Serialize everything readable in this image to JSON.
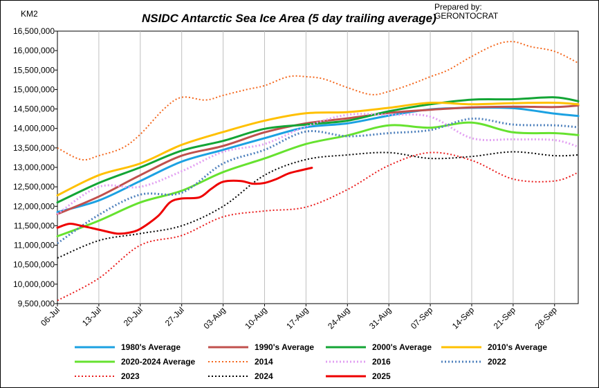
{
  "header": {
    "title": "NSIDC  Antarctic Sea Ice Area (5 day trailing average)",
    "prepared_by": "Prepared by:",
    "author": "GERONTOCRAT",
    "unit": "KM2"
  },
  "chart_data": {
    "type": "line",
    "title": "NSIDC  Antarctic Sea Ice Area (5 day trailing average)",
    "ylabel": "KM2",
    "xlabel": "",
    "x_start": "06-Jul",
    "x_end": "02-Oct",
    "ylim": [
      9500000,
      16500000
    ],
    "grid": "vertical lines at each x tick",
    "legend_position": "bottom",
    "x_ticks": [
      "06-Jul",
      "13-Jul",
      "20-Jul",
      "27-Jul",
      "03-Aug",
      "10-Aug",
      "17-Aug",
      "24-Aug",
      "31-Aug",
      "07-Sep",
      "14-Sep",
      "21-Sep",
      "28-Sep"
    ],
    "y_ticks": [
      "9,500,000",
      "10,000,000",
      "10,500,000",
      "11,000,000",
      "11,500,000",
      "12,000,000",
      "12,500,000",
      "13,000,000",
      "13,500,000",
      "14,000,000",
      "14,500,000",
      "15,000,000",
      "15,500,000",
      "16,000,000",
      "16,500,000"
    ],
    "series": [
      {
        "name": "1980's Average",
        "color": "#1ba1e2",
        "dash": "solid",
        "width": 3,
        "x": [
          "06-Jul",
          "13-Jul",
          "20-Jul",
          "27-Jul",
          "03-Aug",
          "10-Aug",
          "17-Aug",
          "24-Aug",
          "31-Aug",
          "07-Sep",
          "14-Sep",
          "21-Sep",
          "28-Sep",
          "02-Oct"
        ],
        "y": [
          11850000,
          12150000,
          12650000,
          13150000,
          13450000,
          13750000,
          14030000,
          14130000,
          14330000,
          14490000,
          14530000,
          14520000,
          14380000,
          14320000
        ]
      },
      {
        "name": "1990's Average",
        "color": "#c0504d",
        "dash": "solid",
        "width": 3,
        "x": [
          "06-Jul",
          "13-Jul",
          "20-Jul",
          "27-Jul",
          "03-Aug",
          "10-Aug",
          "17-Aug",
          "24-Aug",
          "31-Aug",
          "07-Sep",
          "14-Sep",
          "21-Sep",
          "28-Sep",
          "02-Oct"
        ],
        "y": [
          11800000,
          12250000,
          12800000,
          13300000,
          13550000,
          13900000,
          14130000,
          14260000,
          14400000,
          14480000,
          14540000,
          14560000,
          14550000,
          14590000
        ]
      },
      {
        "name": "2000's Average",
        "color": "#13a535",
        "dash": "solid",
        "width": 3,
        "x": [
          "06-Jul",
          "13-Jul",
          "20-Jul",
          "27-Jul",
          "03-Aug",
          "10-Aug",
          "17-Aug",
          "24-Aug",
          "31-Aug",
          "07-Sep",
          "14-Sep",
          "21-Sep",
          "28-Sep",
          "02-Oct"
        ],
        "y": [
          12100000,
          12600000,
          13000000,
          13430000,
          13680000,
          13990000,
          14100000,
          14200000,
          14440000,
          14620000,
          14740000,
          14750000,
          14800000,
          14700000
        ]
      },
      {
        "name": "2010's Average",
        "color": "#ffc000",
        "dash": "solid",
        "width": 3,
        "x": [
          "06-Jul",
          "13-Jul",
          "20-Jul",
          "27-Jul",
          "03-Aug",
          "10-Aug",
          "17-Aug",
          "24-Aug",
          "31-Aug",
          "07-Sep",
          "14-Sep",
          "21-Sep",
          "28-Sep",
          "02-Oct"
        ],
        "y": [
          12280000,
          12800000,
          13100000,
          13580000,
          13910000,
          14200000,
          14390000,
          14420000,
          14530000,
          14660000,
          14620000,
          14650000,
          14660000,
          14620000
        ]
      },
      {
        "name": "2020-2024 Average",
        "color": "#66e22f",
        "dash": "solid",
        "width": 3,
        "x": [
          "06-Jul",
          "13-Jul",
          "20-Jul",
          "27-Jul",
          "03-Aug",
          "10-Aug",
          "17-Aug",
          "24-Aug",
          "31-Aug",
          "07-Sep",
          "14-Sep",
          "21-Sep",
          "28-Sep",
          "02-Oct"
        ],
        "y": [
          11230000,
          11630000,
          12100000,
          12400000,
          12880000,
          13230000,
          13600000,
          13820000,
          14080000,
          14020000,
          14150000,
          13900000,
          13880000,
          13830000
        ]
      },
      {
        "name": "2014",
        "color": "#f4661b",
        "dash": "2 3",
        "width": 2,
        "x": [
          "06-Jul",
          "10-Jul",
          "13-Jul",
          "17-Jul",
          "20-Jul",
          "24-Jul",
          "27-Jul",
          "31-Jul",
          "03-Aug",
          "07-Aug",
          "10-Aug",
          "14-Aug",
          "17-Aug",
          "20-Aug",
          "24-Aug",
          "28-Aug",
          "31-Aug",
          "04-Sep",
          "07-Sep",
          "10-Sep",
          "14-Sep",
          "18-Sep",
          "21-Sep",
          "24-Sep",
          "28-Sep",
          "02-Oct"
        ],
        "y": [
          13500000,
          13200000,
          13300000,
          13500000,
          13850000,
          14500000,
          14800000,
          14730000,
          14850000,
          15000000,
          15100000,
          15330000,
          15330000,
          15270000,
          15050000,
          14870000,
          14950000,
          15150000,
          15330000,
          15500000,
          15850000,
          16150000,
          16230000,
          16100000,
          15980000,
          15680000
        ]
      },
      {
        "name": "2016",
        "color": "#e29ff2",
        "dash": "2 3",
        "width": 3,
        "x": [
          "06-Jul",
          "13-Jul",
          "20-Jul",
          "27-Jul",
          "03-Aug",
          "10-Aug",
          "17-Aug",
          "24-Aug",
          "31-Aug",
          "07-Sep",
          "14-Sep",
          "21-Sep",
          "28-Sep",
          "02-Oct"
        ],
        "y": [
          11800000,
          12500000,
          12500000,
          12900000,
          13400000,
          13600000,
          14050000,
          14350000,
          14350000,
          14300000,
          13750000,
          13720000,
          13700000,
          13530000
        ]
      },
      {
        "name": "2022",
        "color": "#4f81bd",
        "dash": "2 3",
        "width": 3,
        "x": [
          "06-Jul",
          "13-Jul",
          "20-Jul",
          "27-Jul",
          "03-Aug",
          "10-Aug",
          "17-Aug",
          "24-Aug",
          "31-Aug",
          "07-Sep",
          "14-Sep",
          "21-Sep",
          "28-Sep",
          "02-Oct"
        ],
        "y": [
          11050000,
          11780000,
          12300000,
          12350000,
          13100000,
          13450000,
          13920000,
          13800000,
          13880000,
          13960000,
          14250000,
          14100000,
          14080000,
          14030000
        ]
      },
      {
        "name": "2023",
        "color": "#ea1b1b",
        "dash": "2 3",
        "width": 2,
        "x": [
          "06-Jul",
          "13-Jul",
          "20-Jul",
          "27-Jul",
          "03-Aug",
          "10-Aug",
          "17-Aug",
          "24-Aug",
          "31-Aug",
          "07-Sep",
          "14-Sep",
          "21-Sep",
          "28-Sep",
          "02-Oct"
        ],
        "y": [
          9580000,
          10150000,
          11000000,
          11250000,
          11730000,
          11880000,
          11980000,
          12430000,
          13050000,
          13380000,
          13180000,
          12700000,
          12650000,
          12870000
        ]
      },
      {
        "name": "2024",
        "color": "#000000",
        "dash": "2 3",
        "width": 2,
        "x": [
          "06-Jul",
          "13-Jul",
          "20-Jul",
          "27-Jul",
          "03-Aug",
          "10-Aug",
          "17-Aug",
          "24-Aug",
          "31-Aug",
          "07-Sep",
          "14-Sep",
          "21-Sep",
          "28-Sep",
          "02-Oct"
        ],
        "y": [
          10670000,
          11120000,
          11300000,
          11500000,
          12000000,
          12800000,
          13200000,
          13320000,
          13380000,
          13230000,
          13280000,
          13400000,
          13300000,
          13320000
        ]
      },
      {
        "name": "2025",
        "color": "#ee0000",
        "dash": "solid",
        "width": 3,
        "x": [
          "06-Jul",
          "08-Jul",
          "10-Jul",
          "13-Jul",
          "16-Jul",
          "18-Jul",
          "20-Jul",
          "23-Jul",
          "25-Jul",
          "27-Jul",
          "30-Jul",
          "01-Aug",
          "03-Aug",
          "06-Aug",
          "08-Aug",
          "10-Aug",
          "12-Aug",
          "14-Aug",
          "16-Aug",
          "18-Aug"
        ],
        "y": [
          11450000,
          11550000,
          11500000,
          11400000,
          11300000,
          11320000,
          11420000,
          11750000,
          12100000,
          12200000,
          12230000,
          12450000,
          12630000,
          12650000,
          12580000,
          12600000,
          12700000,
          12840000,
          12920000,
          12990000
        ]
      }
    ]
  }
}
